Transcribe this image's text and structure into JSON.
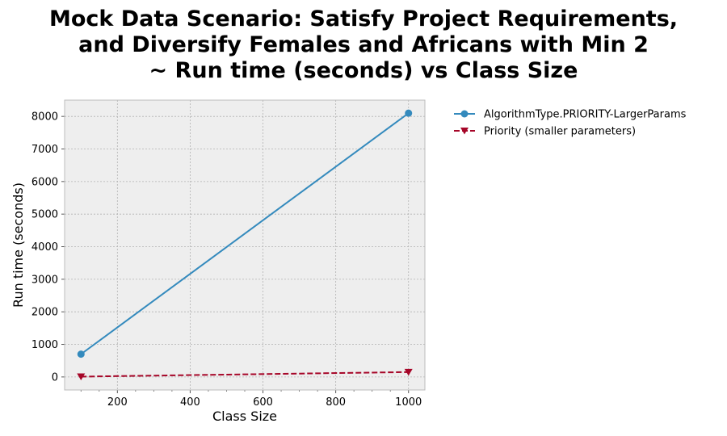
{
  "chart_data": {
    "type": "line",
    "title_lines": [
      "Mock Data Scenario: Satisfy Project Requirements,",
      "and Diversify Females and Africans with Min 2",
      "~ Run time (seconds) vs Class Size"
    ],
    "xlabel": "Class Size",
    "ylabel": "Run time (seconds)",
    "xlim": [
      55,
      1045
    ],
    "ylim": [
      -400,
      8500
    ],
    "x_ticks": [
      200,
      400,
      600,
      800,
      1000
    ],
    "y_ticks": [
      0,
      1000,
      2000,
      3000,
      4000,
      5000,
      6000,
      7000,
      8000
    ],
    "grid": true,
    "legend_position": "outside-right-top",
    "series": [
      {
        "name": "AlgorithmType.PRIORITY-LargerParams",
        "x": [
          100,
          1000
        ],
        "y": [
          700,
          8100
        ],
        "color": "#348ABD",
        "marker": "circle",
        "linestyle": "solid"
      },
      {
        "name": "Priority (smaller parameters)",
        "x": [
          100,
          1000
        ],
        "y": [
          10,
          150
        ],
        "color": "#A60628",
        "marker": "triangle-down",
        "linestyle": "dashed"
      }
    ]
  }
}
